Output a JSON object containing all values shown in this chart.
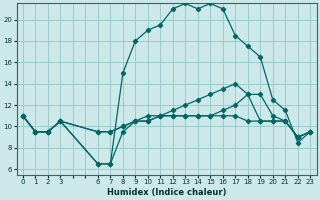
{
  "xlabel": "Humidex (Indice chaleur)",
  "bg_color": "#cce8e8",
  "grid_color": "#99cccc",
  "line_color": "#006666",
  "xlim": [
    -0.5,
    23.5
  ],
  "ylim": [
    5.5,
    21.5
  ],
  "xticks": [
    0,
    1,
    2,
    3,
    6,
    7,
    8,
    9,
    10,
    11,
    12,
    13,
    14,
    15,
    16,
    17,
    18,
    19,
    20,
    21,
    22,
    23
  ],
  "yticks": [
    6,
    8,
    10,
    12,
    14,
    16,
    18,
    20
  ],
  "series": [
    [
      11.0,
      9.5,
      9.5,
      10.5,
      null,
      null,
      6.5,
      6.5,
      9.5,
      10.5,
      11.0,
      11.0,
      11.0,
      11.0,
      11.0,
      11.0,
      11.0,
      11.0,
      10.5,
      10.5,
      10.5,
      10.5,
      9.0,
      9.5
    ],
    [
      11.0,
      9.5,
      9.5,
      10.5,
      null,
      null,
      9.5,
      9.5,
      10.0,
      10.5,
      10.5,
      11.0,
      11.0,
      11.0,
      11.0,
      11.0,
      11.5,
      12.0,
      13.0,
      10.5,
      10.5,
      10.5,
      9.0,
      9.5
    ],
    [
      11.0,
      9.5,
      9.5,
      10.5,
      null,
      null,
      9.5,
      9.5,
      10.0,
      10.5,
      10.5,
      11.0,
      11.5,
      12.0,
      12.5,
      13.0,
      13.5,
      14.0,
      13.0,
      13.0,
      11.0,
      10.5,
      9.0,
      9.5
    ],
    [
      11.0,
      9.5,
      9.5,
      10.5,
      null,
      null,
      6.5,
      6.5,
      15.0,
      18.0,
      19.0,
      19.5,
      21.0,
      21.5,
      21.0,
      21.5,
      21.0,
      18.5,
      17.5,
      16.5,
      12.5,
      11.5,
      8.5,
      9.5
    ]
  ]
}
